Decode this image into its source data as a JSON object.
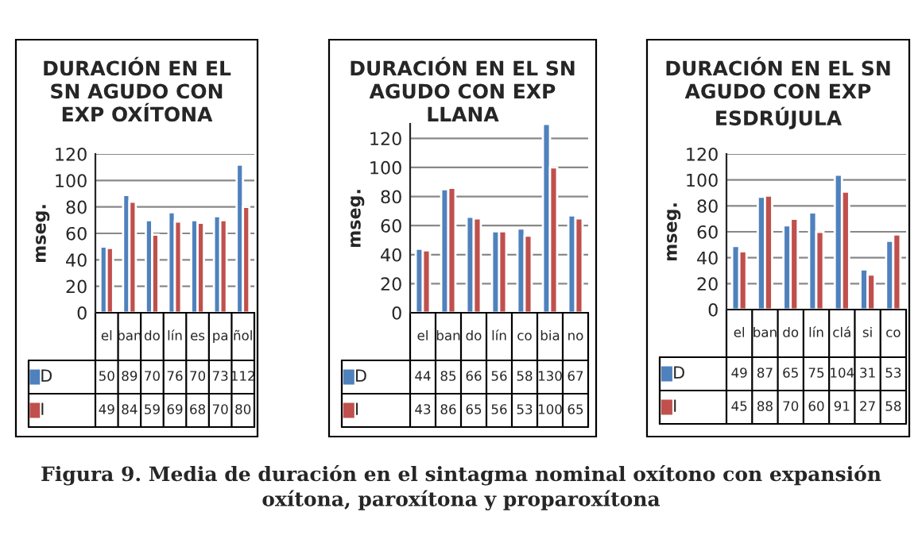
{
  "chart_data": [
    {
      "type": "bar",
      "title": "DURACIÓN EN EL SN AGUDO CON EXP OXÍTONA",
      "ylabel": "mseg.",
      "categories": [
        "el",
        "ban",
        "do",
        "lín",
        "es",
        "pa",
        "ñol"
      ],
      "series": [
        {
          "name": "D",
          "color": "#4f81bd",
          "values": [
            50,
            89,
            70,
            76,
            70,
            73,
            112
          ]
        },
        {
          "name": "I",
          "color": "#c0504d",
          "values": [
            49,
            84,
            59,
            69,
            68,
            70,
            80
          ]
        }
      ],
      "data_labels": true,
      "ylim": [
        0,
        120
      ],
      "yticks": [
        0,
        20,
        40,
        60,
        80,
        100,
        120
      ],
      "grid": "y",
      "legend": "bottom",
      "annotations": [
        "Figura 9. Media de duración en el sintagma nominal oxítono con expansión oxítona, paroxítona y proparoxítona"
      ]
    },
    {
      "type": "bar",
      "title": "DURACIÓN EN EL SN AGUDO CON EXP LLANA",
      "ylabel": "mseg.",
      "categories": [
        "el",
        "ban",
        "do",
        "lín",
        "co",
        "bia",
        "no"
      ],
      "series": [
        {
          "name": "D",
          "color": "#4f81bd",
          "values": [
            44,
            85,
            66,
            56,
            58,
            130,
            67
          ]
        },
        {
          "name": "I",
          "color": "#c0504d",
          "values": [
            43,
            86,
            65,
            56,
            53,
            100,
            65
          ]
        }
      ],
      "data_labels": true,
      "ylim": [
        0,
        130
      ],
      "yticks": [
        0,
        20,
        40,
        60,
        80,
        100,
        120
      ],
      "grid": "y",
      "legend": "bottom"
    },
    {
      "type": "bar",
      "title": "DURACIÓN EN EL SN AGUDO CON EXP ESDRÚJULA",
      "ylabel": "mseg.",
      "categories": [
        "el",
        "ban",
        "do",
        "lín",
        "clá",
        "si",
        "co"
      ],
      "series": [
        {
          "name": "D",
          "color": "#4f81bd",
          "values": [
            49,
            87,
            65,
            75,
            104,
            31,
            53
          ]
        },
        {
          "name": "I",
          "color": "#c0504d",
          "values": [
            45,
            88,
            70,
            60,
            91,
            27,
            58
          ]
        }
      ],
      "data_labels": true,
      "ylim": [
        0,
        120
      ],
      "yticks": [
        0,
        20,
        40,
        60,
        80,
        100,
        120
      ],
      "grid": "y",
      "legend": "bottom"
    }
  ]
}
